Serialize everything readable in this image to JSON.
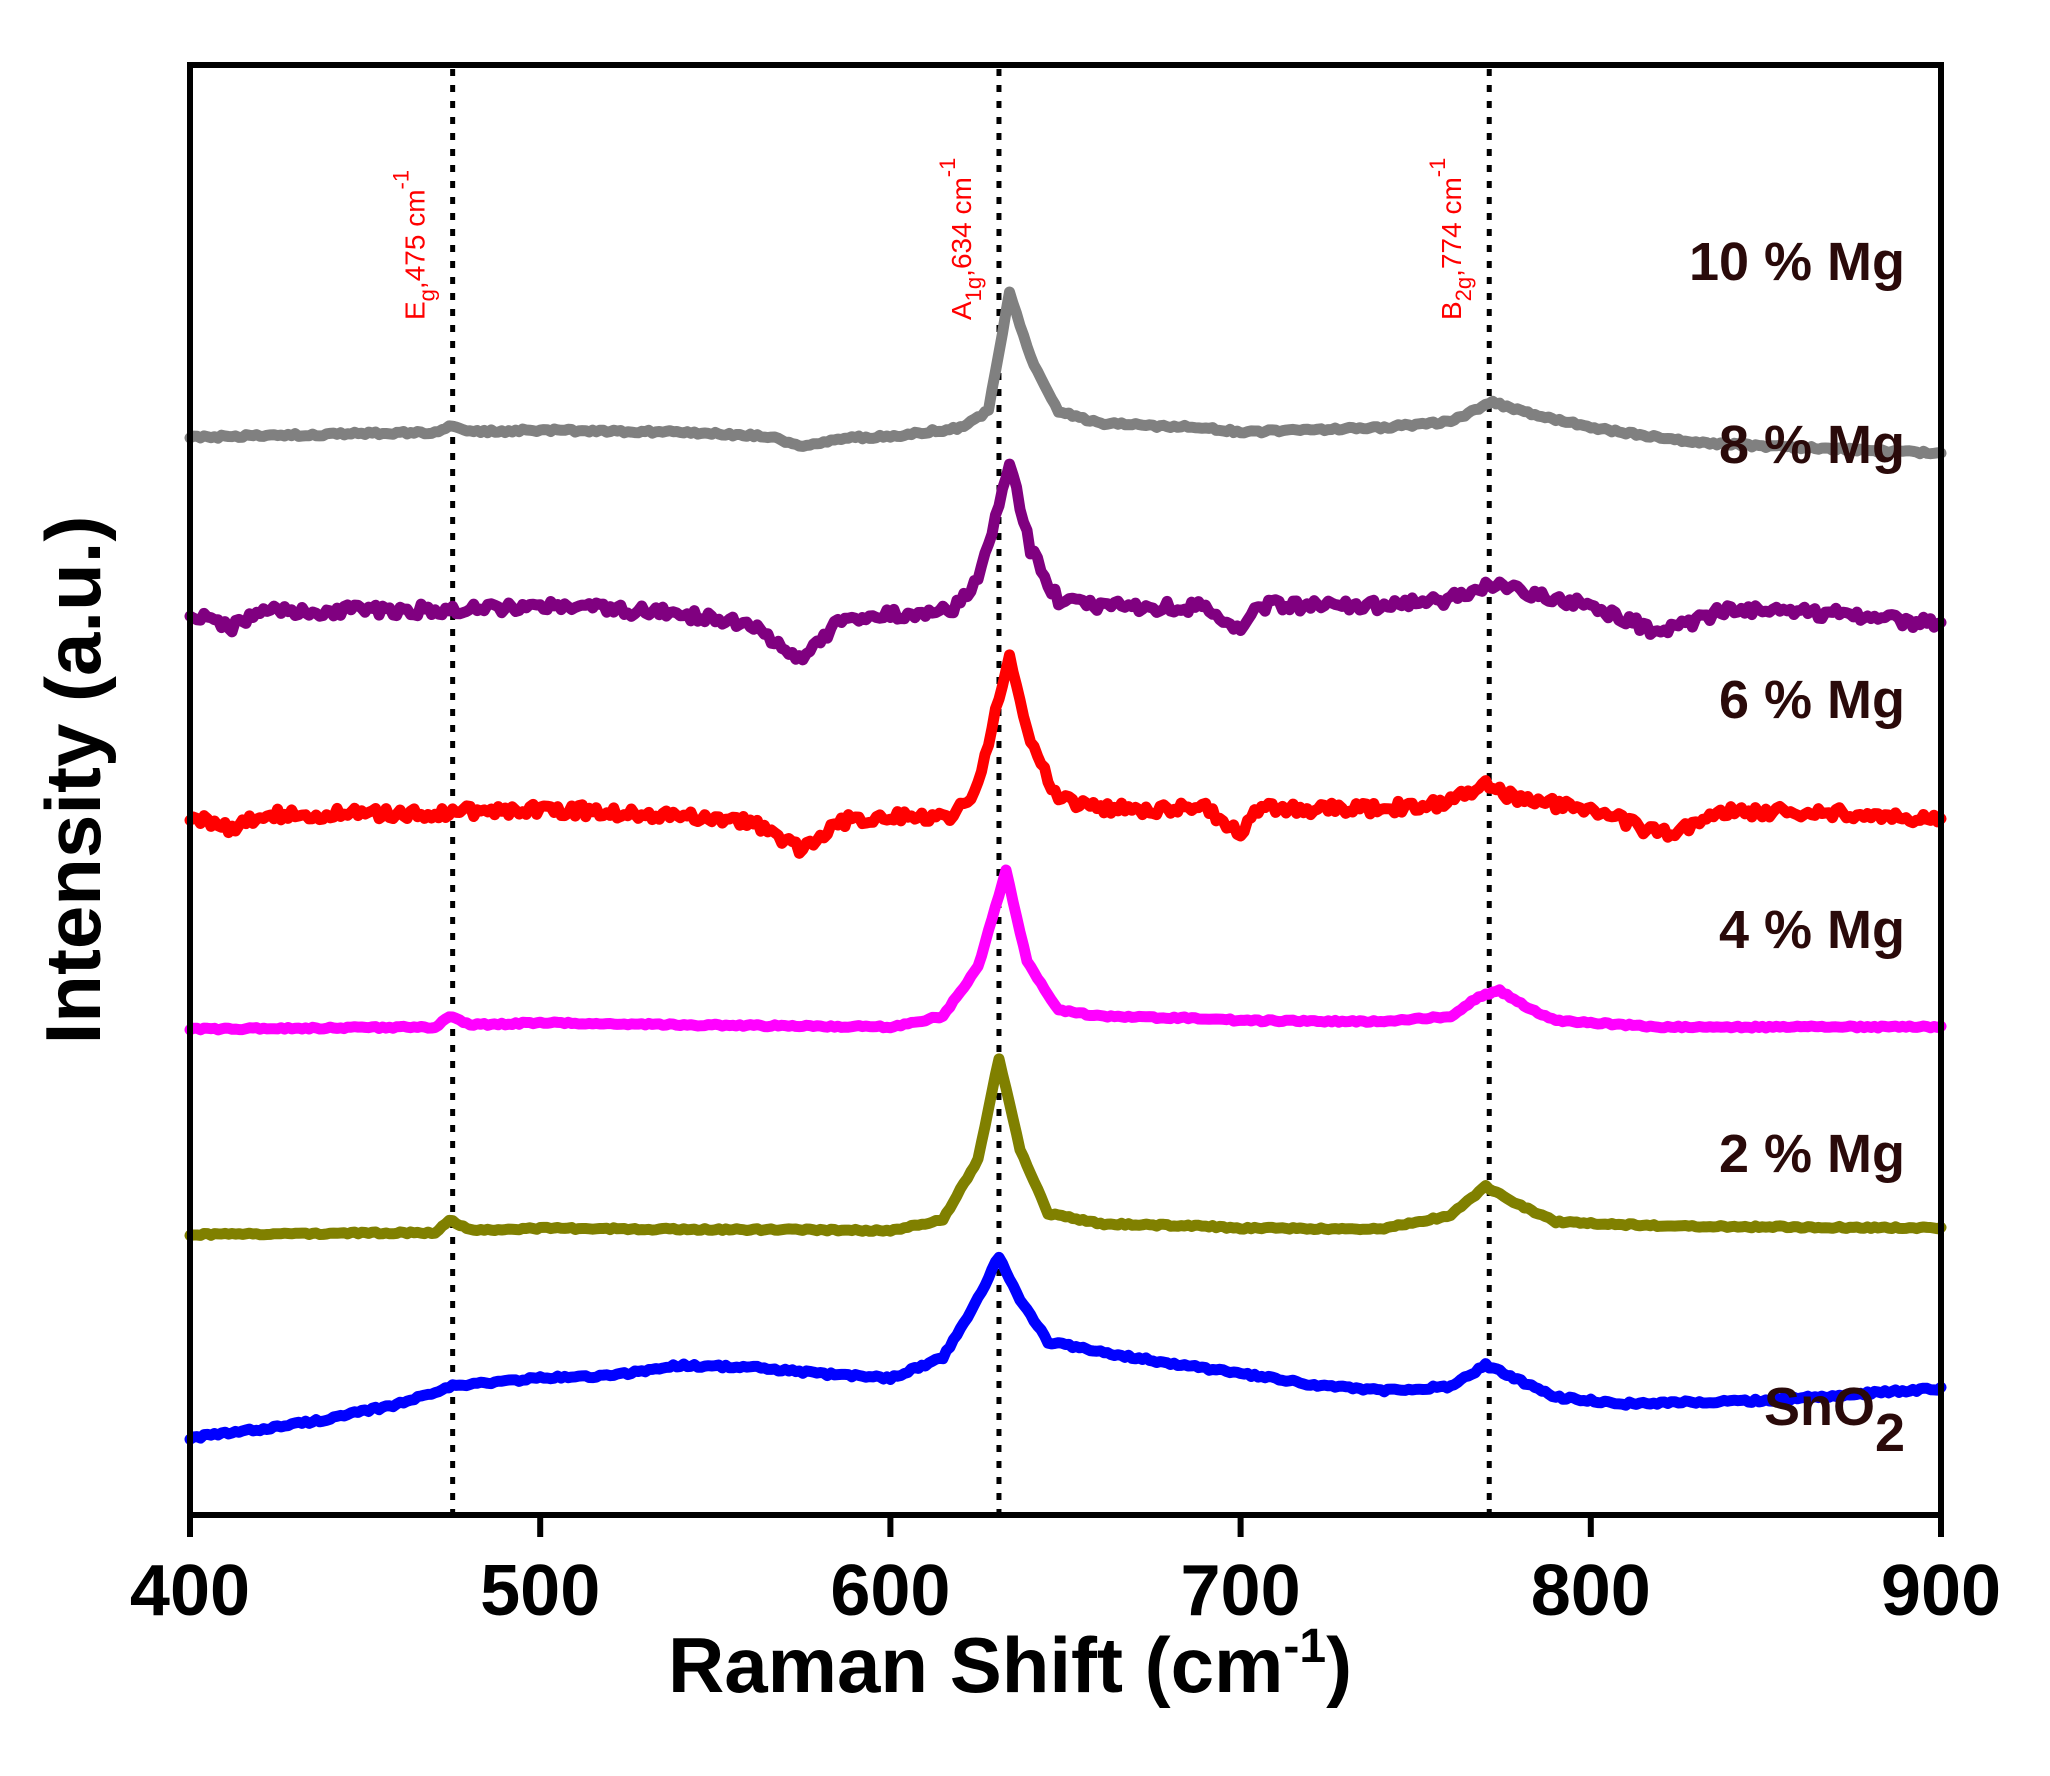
{
  "chart_data": {
    "type": "line",
    "title": "",
    "xlabel": "Raman Shift (cm",
    "xlabel_sup": "-1",
    "xlabel_end": ")",
    "ylabel": "Intensity (a.u.)",
    "xlim": [
      400,
      900
    ],
    "xticks": [
      400,
      500,
      600,
      700,
      800,
      900
    ],
    "ylim": [
      0,
      1000
    ],
    "grid": false,
    "reference_lines": [
      {
        "x": 475,
        "mode": "E",
        "sub": "g",
        "value": ",475 cm",
        "sup": "-1"
      },
      {
        "x": 631,
        "mode": "A",
        "sub": "1g",
        "value": ",634 cm",
        "sup": "-1"
      },
      {
        "x": 771,
        "mode": "B",
        "sub": "2g",
        "value": ",774 cm",
        "sup": "-1"
      }
    ],
    "series": [
      {
        "name": "SnO2",
        "label": "SnO",
        "label_sub": "2",
        "color": "#0000ff",
        "baseline": 30,
        "noise": 3,
        "points": [
          [
            400,
            30
          ],
          [
            420,
            38
          ],
          [
            440,
            48
          ],
          [
            460,
            62
          ],
          [
            474,
            78
          ],
          [
            480,
            80
          ],
          [
            500,
            86
          ],
          [
            520,
            88
          ],
          [
            540,
            98
          ],
          [
            560,
            96
          ],
          [
            580,
            90
          ],
          [
            600,
            86
          ],
          [
            615,
            105
          ],
          [
            625,
            160
          ],
          [
            631,
            200
          ],
          [
            636,
            165
          ],
          [
            645,
            120
          ],
          [
            660,
            110
          ],
          [
            690,
            95
          ],
          [
            700,
            90
          ],
          [
            720,
            80
          ],
          [
            740,
            74
          ],
          [
            760,
            78
          ],
          [
            770,
            98
          ],
          [
            778,
            86
          ],
          [
            790,
            68
          ],
          [
            810,
            62
          ],
          [
            850,
            65
          ],
          [
            880,
            72
          ],
          [
            900,
            76
          ]
        ]
      },
      {
        "name": "2 % Mg",
        "label": "2 % Mg",
        "color": "#808000",
        "baseline": 220,
        "noise": 2,
        "points": [
          [
            400,
            220
          ],
          [
            470,
            222
          ],
          [
            474,
            234
          ],
          [
            480,
            224
          ],
          [
            500,
            226
          ],
          [
            540,
            225
          ],
          [
            600,
            224
          ],
          [
            615,
            234
          ],
          [
            625,
            290
          ],
          [
            631,
            385
          ],
          [
            637,
            300
          ],
          [
            645,
            240
          ],
          [
            660,
            230
          ],
          [
            690,
            228
          ],
          [
            700,
            226
          ],
          [
            740,
            225
          ],
          [
            760,
            238
          ],
          [
            770,
            265
          ],
          [
            778,
            250
          ],
          [
            790,
            232
          ],
          [
            820,
            228
          ],
          [
            900,
            226
          ]
        ]
      },
      {
        "name": "4 % Mg",
        "label": "4 % Mg",
        "color": "#ff00ff",
        "baseline": 412,
        "noise": 2,
        "points": [
          [
            400,
            412
          ],
          [
            470,
            414
          ],
          [
            474,
            424
          ],
          [
            480,
            416
          ],
          [
            500,
            418
          ],
          [
            540,
            416
          ],
          [
            600,
            414
          ],
          [
            615,
            424
          ],
          [
            625,
            470
          ],
          [
            633,
            560
          ],
          [
            639,
            475
          ],
          [
            648,
            430
          ],
          [
            660,
            424
          ],
          [
            690,
            422
          ],
          [
            700,
            420
          ],
          [
            740,
            419
          ],
          [
            760,
            424
          ],
          [
            768,
            442
          ],
          [
            774,
            448
          ],
          [
            782,
            432
          ],
          [
            790,
            420
          ],
          [
            820,
            414
          ],
          [
            900,
            414
          ]
        ]
      },
      {
        "name": "6 % Mg",
        "label": "6 % Mg",
        "color": "#ff0000",
        "baseline": 610,
        "noise": 11,
        "points": [
          [
            400,
            610
          ],
          [
            412,
            600
          ],
          [
            420,
            612
          ],
          [
            470,
            614
          ],
          [
            500,
            618
          ],
          [
            540,
            612
          ],
          [
            560,
            606
          ],
          [
            575,
            580
          ],
          [
            585,
            606
          ],
          [
            600,
            612
          ],
          [
            618,
            610
          ],
          [
            625,
            640
          ],
          [
            634,
            765
          ],
          [
            640,
            680
          ],
          [
            648,
            628
          ],
          [
            660,
            618
          ],
          [
            690,
            618
          ],
          [
            700,
            596
          ],
          [
            705,
            618
          ],
          [
            740,
            618
          ],
          [
            760,
            624
          ],
          [
            770,
            640
          ],
          [
            778,
            628
          ],
          [
            790,
            622
          ],
          [
            800,
            618
          ],
          [
            820,
            594
          ],
          [
            840,
            616
          ],
          [
            870,
            614
          ],
          [
            900,
            606
          ]
        ]
      },
      {
        "name": "8 % Mg",
        "label": "8 % Mg",
        "color": "#800080",
        "baseline": 800,
        "noise": 11,
        "points": [
          [
            400,
            800
          ],
          [
            412,
            788
          ],
          [
            420,
            802
          ],
          [
            470,
            804
          ],
          [
            500,
            808
          ],
          [
            540,
            800
          ],
          [
            560,
            790
          ],
          [
            575,
            756
          ],
          [
            585,
            792
          ],
          [
            600,
            800
          ],
          [
            618,
            804
          ],
          [
            625,
            830
          ],
          [
            634,
            940
          ],
          [
            640,
            860
          ],
          [
            648,
            812
          ],
          [
            660,
            808
          ],
          [
            690,
            806
          ],
          [
            700,
            782
          ],
          [
            705,
            808
          ],
          [
            740,
            808
          ],
          [
            760,
            814
          ],
          [
            772,
            828
          ],
          [
            780,
            820
          ],
          [
            790,
            814
          ],
          [
            800,
            808
          ],
          [
            820,
            782
          ],
          [
            840,
            806
          ],
          [
            870,
            800
          ],
          [
            900,
            790
          ]
        ]
      },
      {
        "name": "10 % Mg",
        "label": "10 % Mg",
        "color": "#808080",
        "baseline": 965,
        "noise": 3,
        "points": [
          [
            400,
            965
          ],
          [
            470,
            970
          ],
          [
            474,
            976
          ],
          [
            480,
            970
          ],
          [
            500,
            972
          ],
          [
            540,
            970
          ],
          [
            565,
            966
          ],
          [
            575,
            956
          ],
          [
            585,
            964
          ],
          [
            600,
            966
          ],
          [
            620,
            974
          ],
          [
            628,
            990
          ],
          [
            634,
            1100
          ],
          [
            640,
            1040
          ],
          [
            648,
            990
          ],
          [
            660,
            978
          ],
          [
            690,
            974
          ],
          [
            700,
            970
          ],
          [
            740,
            974
          ],
          [
            760,
            980
          ],
          [
            772,
            998
          ],
          [
            780,
            990
          ],
          [
            800,
            974
          ],
          [
            830,
            960
          ],
          [
            870,
            954
          ],
          [
            900,
            950
          ]
        ]
      }
    ]
  }
}
